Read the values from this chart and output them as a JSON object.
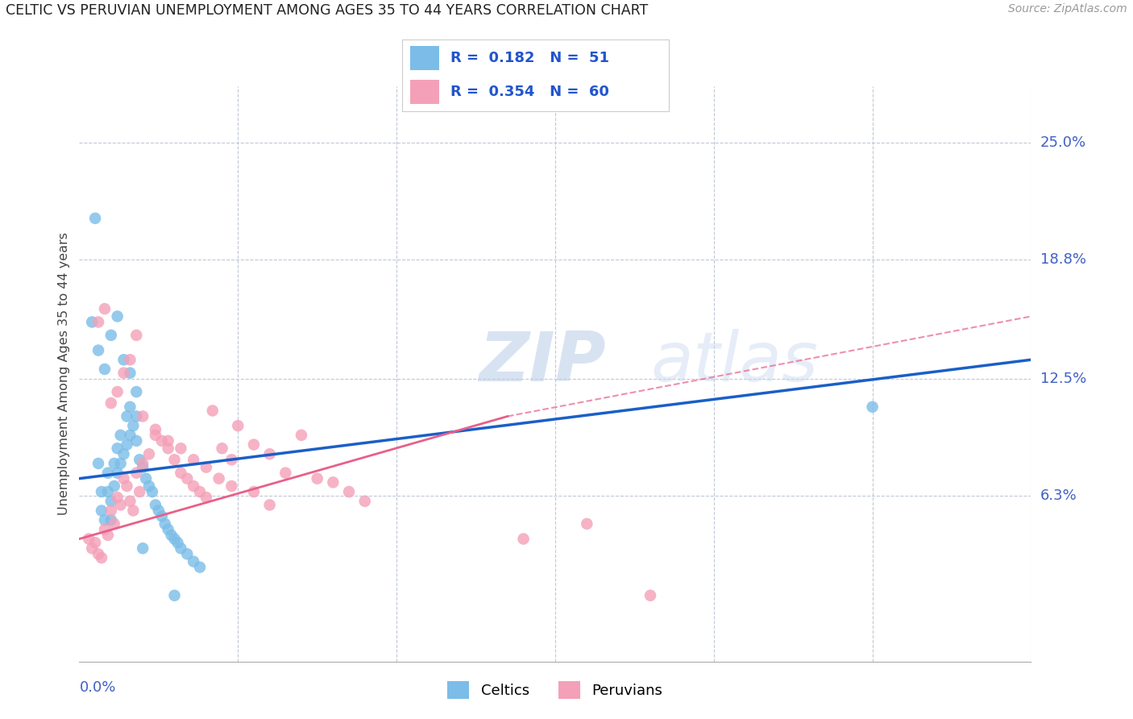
{
  "title": "CELTIC VS PERUVIAN UNEMPLOYMENT AMONG AGES 35 TO 44 YEARS CORRELATION CHART",
  "source": "Source: ZipAtlas.com",
  "ylabel": "Unemployment Among Ages 35 to 44 years",
  "ytick_labels": [
    "25.0%",
    "18.8%",
    "12.5%",
    "6.3%"
  ],
  "ytick_values": [
    0.25,
    0.188,
    0.125,
    0.063
  ],
  "xlim": [
    0.0,
    0.3
  ],
  "ylim": [
    -0.025,
    0.28
  ],
  "celtic_color": "#7bbde8",
  "peruvian_color": "#f4a0b8",
  "celtic_line_color": "#1a5fc8",
  "peruvian_line_color": "#e8608a",
  "watermark_zip": "ZIP",
  "watermark_atlas": "atlas",
  "celtics_x": [
    0.005,
    0.006,
    0.007,
    0.007,
    0.008,
    0.009,
    0.009,
    0.01,
    0.01,
    0.011,
    0.011,
    0.012,
    0.012,
    0.013,
    0.013,
    0.014,
    0.015,
    0.015,
    0.016,
    0.016,
    0.017,
    0.018,
    0.018,
    0.019,
    0.02,
    0.021,
    0.022,
    0.023,
    0.024,
    0.025,
    0.026,
    0.027,
    0.028,
    0.029,
    0.03,
    0.031,
    0.032,
    0.034,
    0.036,
    0.038,
    0.01,
    0.012,
    0.014,
    0.016,
    0.018,
    0.004,
    0.006,
    0.008,
    0.02,
    0.25,
    0.03
  ],
  "celtics_y": [
    0.21,
    0.08,
    0.065,
    0.055,
    0.05,
    0.075,
    0.065,
    0.06,
    0.05,
    0.08,
    0.068,
    0.088,
    0.075,
    0.095,
    0.08,
    0.085,
    0.105,
    0.09,
    0.11,
    0.095,
    0.1,
    0.105,
    0.092,
    0.082,
    0.078,
    0.072,
    0.068,
    0.065,
    0.058,
    0.055,
    0.052,
    0.048,
    0.045,
    0.042,
    0.04,
    0.038,
    0.035,
    0.032,
    0.028,
    0.025,
    0.148,
    0.158,
    0.135,
    0.128,
    0.118,
    0.155,
    0.14,
    0.13,
    0.035,
    0.11,
    0.01
  ],
  "peruvians_x": [
    0.003,
    0.004,
    0.005,
    0.006,
    0.007,
    0.008,
    0.009,
    0.01,
    0.011,
    0.012,
    0.013,
    0.014,
    0.015,
    0.016,
    0.017,
    0.018,
    0.019,
    0.02,
    0.022,
    0.024,
    0.026,
    0.028,
    0.03,
    0.032,
    0.034,
    0.036,
    0.038,
    0.04,
    0.042,
    0.045,
    0.048,
    0.05,
    0.055,
    0.06,
    0.065,
    0.07,
    0.075,
    0.08,
    0.085,
    0.09,
    0.01,
    0.012,
    0.014,
    0.016,
    0.018,
    0.006,
    0.008,
    0.02,
    0.024,
    0.028,
    0.032,
    0.036,
    0.04,
    0.044,
    0.048,
    0.055,
    0.06,
    0.16,
    0.14,
    0.18
  ],
  "peruvians_y": [
    0.04,
    0.035,
    0.038,
    0.032,
    0.03,
    0.045,
    0.042,
    0.055,
    0.048,
    0.062,
    0.058,
    0.072,
    0.068,
    0.06,
    0.055,
    0.075,
    0.065,
    0.08,
    0.085,
    0.095,
    0.092,
    0.088,
    0.082,
    0.075,
    0.072,
    0.068,
    0.065,
    0.062,
    0.108,
    0.088,
    0.082,
    0.1,
    0.09,
    0.085,
    0.075,
    0.095,
    0.072,
    0.07,
    0.065,
    0.06,
    0.112,
    0.118,
    0.128,
    0.135,
    0.148,
    0.155,
    0.162,
    0.105,
    0.098,
    0.092,
    0.088,
    0.082,
    0.078,
    0.072,
    0.068,
    0.065,
    0.058,
    0.048,
    0.04,
    0.01
  ]
}
